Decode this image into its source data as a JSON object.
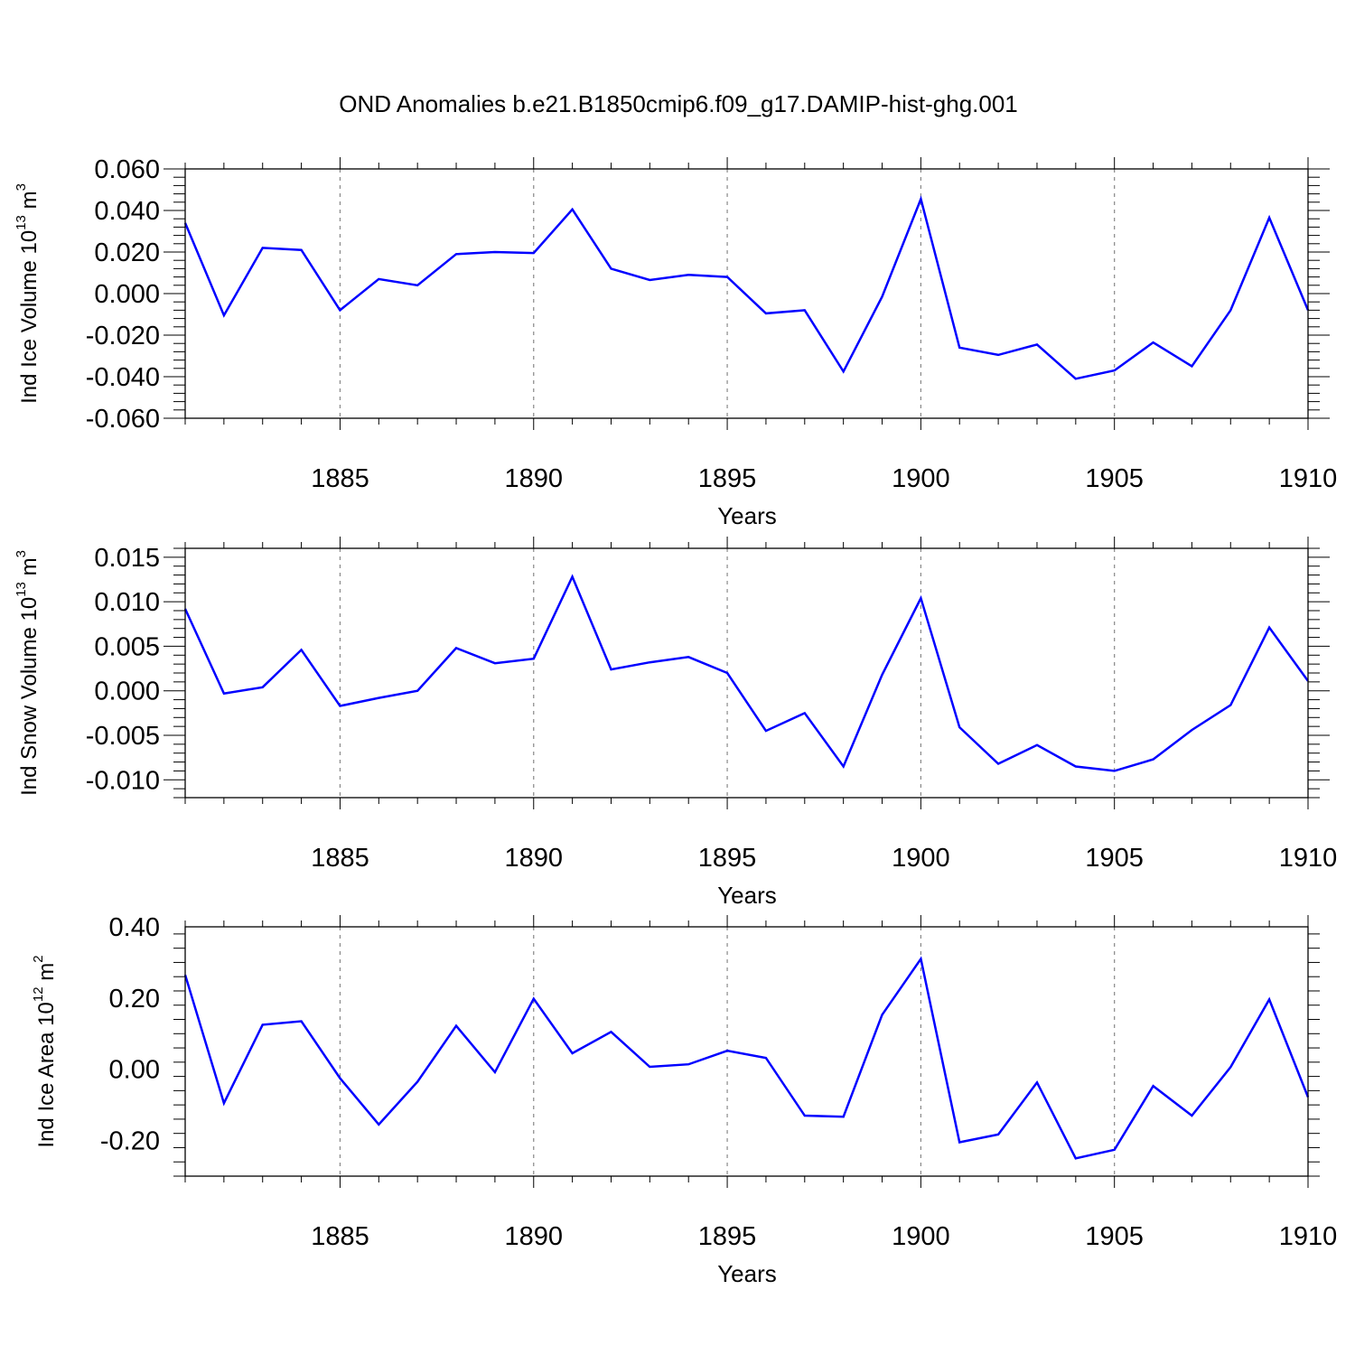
{
  "figure": {
    "title": "OND Anomalies b.e21.B1850cmip6.f09_g17.DAMIP-hist-ghg.001",
    "line_color": "#0000ff",
    "grid_color": "#888888"
  },
  "chart_data": [
    {
      "type": "line",
      "ylabel": {
        "main": "Ind Ice Volume 10",
        "exp": "13",
        "unit": " m",
        "unit_exp": "3"
      },
      "xlabel": "Years",
      "xlim": [
        1881,
        1910
      ],
      "ylim": [
        -0.06,
        0.06
      ],
      "yticks": [
        -0.06,
        -0.04,
        -0.02,
        0.0,
        0.02,
        0.04,
        0.06
      ],
      "ytick_labels": [
        "-0.060",
        "-0.040",
        "-0.020",
        "0.000",
        "0.020",
        "0.040",
        "0.060"
      ],
      "xticks": [
        1885,
        1890,
        1895,
        1900,
        1905,
        1910
      ],
      "xtick_labels": [
        "1885",
        "1890",
        "1895",
        "1900",
        "1905",
        "1910"
      ],
      "grid": "vertical dashed at major x ticks",
      "x": [
        1881,
        1882,
        1883,
        1884,
        1885,
        1886,
        1887,
        1888,
        1889,
        1890,
        1891,
        1892,
        1893,
        1894,
        1895,
        1896,
        1897,
        1898,
        1899,
        1900,
        1901,
        1902,
        1903,
        1904,
        1905,
        1906,
        1907,
        1908,
        1909,
        1910
      ],
      "values": [
        0.034,
        -0.0105,
        0.022,
        0.021,
        -0.008,
        0.007,
        0.004,
        0.019,
        0.02,
        0.0195,
        0.0405,
        0.012,
        0.0065,
        0.009,
        0.008,
        -0.0095,
        -0.008,
        -0.0375,
        -0.0015,
        0.0455,
        -0.026,
        -0.0295,
        -0.0245,
        -0.041,
        -0.037,
        -0.0235,
        -0.035,
        -0.008,
        0.0365,
        -0.008
      ]
    },
    {
      "type": "line",
      "ylabel": {
        "main": "Ind Snow Volume 10",
        "exp": "13",
        "unit": " m",
        "unit_exp": "3"
      },
      "xlabel": "Years",
      "xlim": [
        1881,
        1910
      ],
      "ylim": [
        -0.012,
        0.016
      ],
      "yticks": [
        -0.01,
        -0.005,
        0.0,
        0.005,
        0.01,
        0.015
      ],
      "ytick_labels": [
        "-0.010",
        "-0.005",
        "0.000",
        "0.005",
        "0.010",
        "0.015"
      ],
      "xticks": [
        1885,
        1890,
        1895,
        1900,
        1905,
        1910
      ],
      "xtick_labels": [
        "1885",
        "1890",
        "1895",
        "1900",
        "1905",
        "1910"
      ],
      "grid": "vertical dashed at major x ticks",
      "x": [
        1881,
        1882,
        1883,
        1884,
        1885,
        1886,
        1887,
        1888,
        1889,
        1890,
        1891,
        1892,
        1893,
        1894,
        1895,
        1896,
        1897,
        1898,
        1899,
        1900,
        1901,
        1902,
        1903,
        1904,
        1905,
        1906,
        1907,
        1908,
        1909,
        1910
      ],
      "values": [
        0.0092,
        -0.0003,
        0.0004,
        0.0046,
        -0.0017,
        -0.0008,
        0.0,
        0.0048,
        0.0031,
        0.0036,
        0.0128,
        0.0024,
        0.0032,
        0.0038,
        0.002,
        -0.0045,
        -0.0025,
        -0.0085,
        0.0018,
        0.0104,
        -0.0041,
        -0.0082,
        -0.0061,
        -0.0085,
        -0.009,
        -0.0077,
        -0.0044,
        -0.0016,
        0.0071,
        0.0011
      ]
    },
    {
      "type": "line",
      "ylabel": {
        "main": "Ind Ice Area 10",
        "exp": "12",
        "unit": " m",
        "unit_exp": "2"
      },
      "xlabel": "Years",
      "xlim": [
        1881,
        1910
      ],
      "ylim": [
        -0.3,
        0.4
      ],
      "yticks": [
        -0.2,
        0.0,
        0.2,
        0.4
      ],
      "ytick_labels": [
        "-0.20",
        "0.00",
        "0.20",
        "0.40"
      ],
      "xticks": [
        1885,
        1890,
        1895,
        1900,
        1905,
        1910
      ],
      "xtick_labels": [
        "1885",
        "1890",
        "1895",
        "1900",
        "1905",
        "1910"
      ],
      "grid": "vertical dashed at major x ticks",
      "x": [
        1881,
        1882,
        1883,
        1884,
        1885,
        1886,
        1887,
        1888,
        1889,
        1890,
        1891,
        1892,
        1893,
        1894,
        1895,
        1896,
        1897,
        1898,
        1899,
        1900,
        1901,
        1902,
        1903,
        1904,
        1905,
        1906,
        1907,
        1908,
        1909,
        1910
      ],
      "values": [
        0.265,
        -0.095,
        0.125,
        0.135,
        -0.025,
        -0.155,
        -0.035,
        0.122,
        -0.008,
        0.198,
        0.045,
        0.105,
        0.007,
        0.014,
        0.052,
        0.032,
        -0.13,
        -0.133,
        0.153,
        0.31,
        -0.205,
        -0.183,
        -0.037,
        -0.25,
        -0.226,
        -0.047,
        -0.13,
        0.006,
        0.196,
        -0.078
      ]
    }
  ]
}
